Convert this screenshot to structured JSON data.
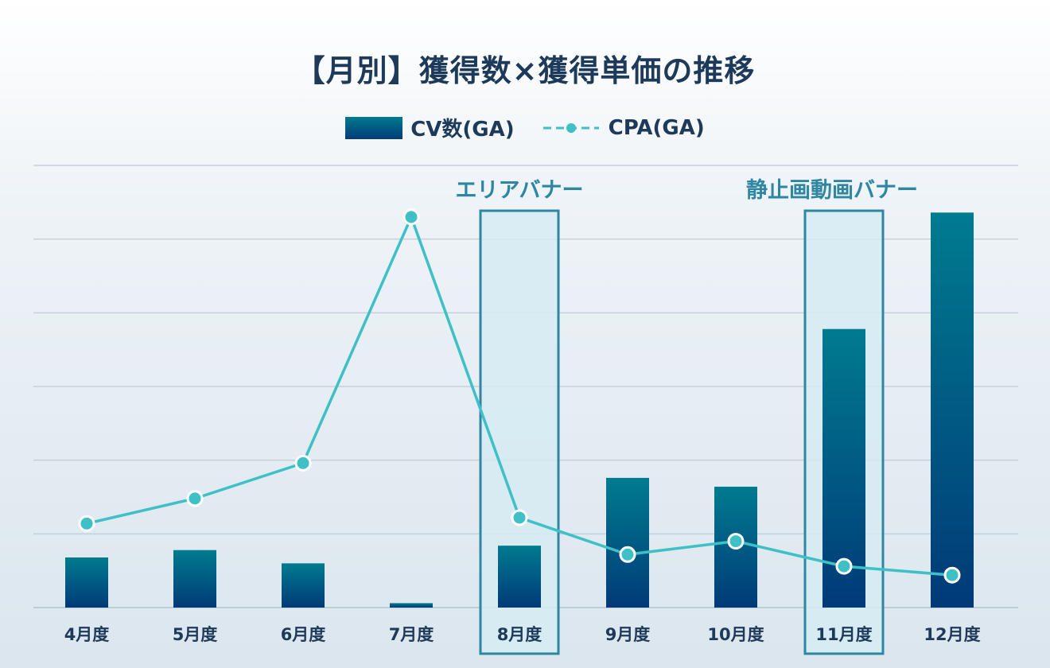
{
  "chart_data": {
    "type": "bar+line",
    "title": "【月別】獲得数×獲得単価の推移",
    "categories": [
      "4月度",
      "5月度",
      "6月度",
      "7月度",
      "8月度",
      "9月度",
      "10月度",
      "11月度",
      "12月度"
    ],
    "series": [
      {
        "name": "CV数(GA)",
        "type": "bar",
        "values": [
          34,
          39,
          30,
          3,
          42,
          88,
          82,
          189,
          268
        ],
        "color": "#00507f"
      },
      {
        "name": "CPA(GA)",
        "type": "line",
        "values": [
          57,
          74,
          98,
          265,
          61,
          36,
          45,
          28,
          22
        ],
        "color": "#3fbfc6"
      }
    ],
    "ylim": [
      0,
      300
    ],
    "grid": true,
    "legend_position": "top-center",
    "highlights": [
      {
        "label": "エリアバナー",
        "category_index": 4
      },
      {
        "label": "静止画動画バナー",
        "category_index": 7
      }
    ]
  }
}
